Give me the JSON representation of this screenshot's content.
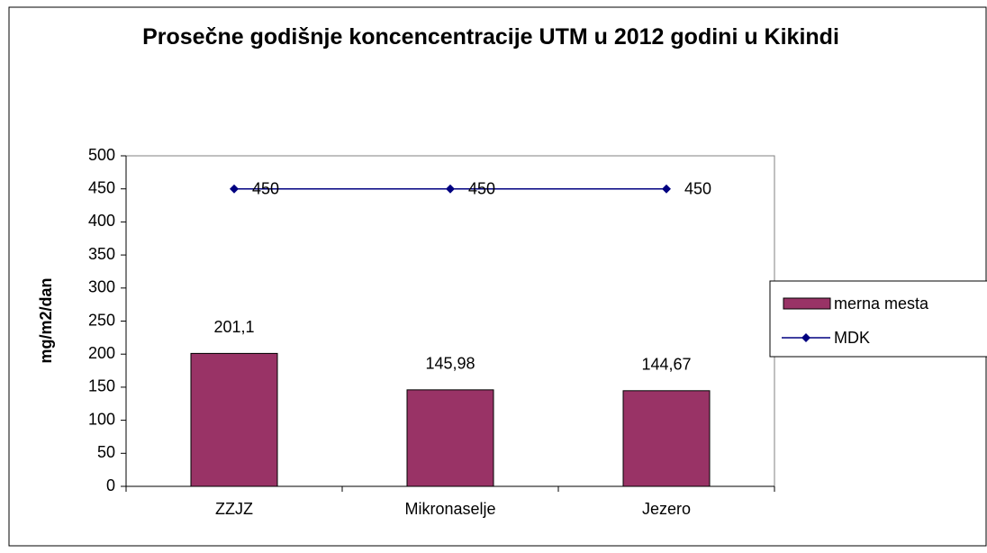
{
  "chart_data": {
    "type": "bar",
    "title": "Prosečne godišnje koncencentracije UTM u 2012 godini u Kikindi",
    "ylabel": "mg/m2/dan",
    "categories": [
      "ZZJZ",
      "Mikronaselje",
      "Jezero"
    ],
    "series": [
      {
        "name": "merna mesta",
        "color": "#993366",
        "values": [
          201.1,
          145.98,
          144.67
        ],
        "value_labels": [
          "201,1",
          "145,98",
          "144,67"
        ]
      },
      {
        "name": "MDK",
        "type": "line",
        "color": "#000080",
        "values": [
          450,
          450,
          450
        ]
      }
    ],
    "ylim": [
      0,
      500
    ],
    "yticks": [
      0,
      50,
      100,
      150,
      200,
      250,
      300,
      350,
      400,
      450,
      500
    ],
    "grid": false,
    "legend": "right"
  }
}
